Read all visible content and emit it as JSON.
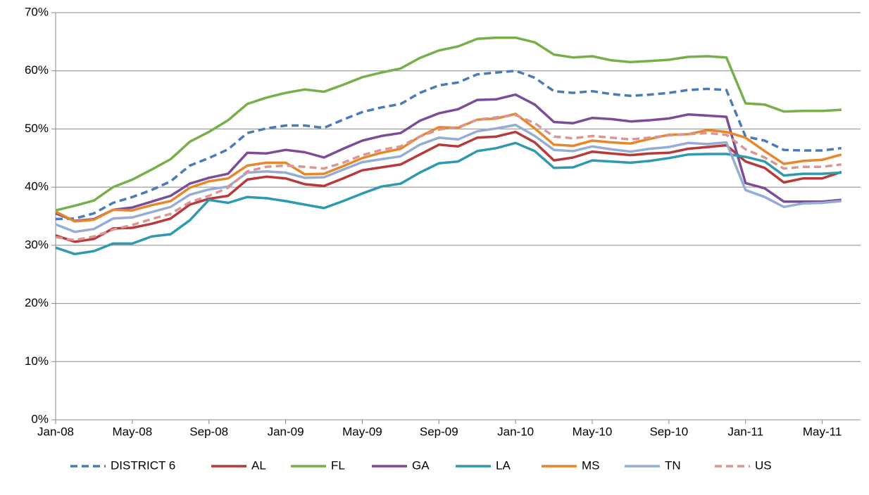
{
  "chart_data": {
    "type": "line",
    "categories": [
      "Jan-08",
      null,
      null,
      null,
      "May-08",
      null,
      null,
      null,
      "Sep-08",
      null,
      null,
      null,
      "Jan-09",
      null,
      null,
      null,
      "May-09",
      null,
      null,
      null,
      "Sep-09",
      null,
      null,
      null,
      "Jan-10",
      null,
      null,
      null,
      "May-10",
      null,
      null,
      null,
      "Sep-10",
      null,
      null,
      null,
      "Jan-11",
      null,
      null,
      null,
      "May-11",
      null
    ],
    "ylim": [
      0,
      70
    ],
    "yticks": [
      {
        "value": 0,
        "label": "0%"
      },
      {
        "value": 10,
        "label": "10%"
      },
      {
        "value": 20,
        "label": "20%"
      },
      {
        "value": 30,
        "label": "30%"
      },
      {
        "value": 40,
        "label": "40%"
      },
      {
        "value": 50,
        "label": "50%"
      },
      {
        "value": 60,
        "label": "60%"
      },
      {
        "value": 70,
        "label": "70%"
      }
    ],
    "grid": true,
    "legend": "bottom",
    "series": [
      {
        "name": "DISTRICT 6",
        "color": "#4a7ab8",
        "dashed": true,
        "values": [
          34.5,
          34.6,
          35.5,
          37.3,
          38.3,
          39.5,
          41,
          43.7,
          45,
          46.5,
          49.3,
          50.1,
          50.6,
          50.6,
          50.2,
          51.6,
          52.9,
          53.7,
          54.3,
          56.2,
          57.5,
          58,
          59.4,
          59.7,
          60,
          58.8,
          56.5,
          56.2,
          56.5,
          56,
          55.7,
          55.9,
          56.2,
          56.7,
          56.9,
          56.7,
          48.7,
          48,
          46.4,
          46.3,
          46.3,
          46.7
        ]
      },
      {
        "name": "AL",
        "color": "#b7393a",
        "dashed": false,
        "values": [
          31.7,
          30.6,
          31.1,
          32.9,
          33,
          33.7,
          34.6,
          37,
          38,
          38.5,
          41.3,
          41.8,
          41.5,
          40.5,
          40.2,
          41.5,
          42.9,
          43.4,
          43.9,
          45.6,
          47.3,
          47,
          48.5,
          48.7,
          49.5,
          47.7,
          44.6,
          45.1,
          46.1,
          45.8,
          45.5,
          45.8,
          45.9,
          46.6,
          46.9,
          47.2,
          44.4,
          43.3,
          40.8,
          41.5,
          41.5,
          42.6
        ]
      },
      {
        "name": "FL",
        "color": "#77b04a",
        "dashed": false,
        "values": [
          36,
          36.8,
          37.7,
          40,
          41.3,
          43,
          44.8,
          47.8,
          49.5,
          51.5,
          54.3,
          55.4,
          56.2,
          56.8,
          56.4,
          57.6,
          58.9,
          59.7,
          60.4,
          62.2,
          63.5,
          64.2,
          65.5,
          65.7,
          65.7,
          64.9,
          62.8,
          62.3,
          62.5,
          61.8,
          61.5,
          61.7,
          61.9,
          62.4,
          62.5,
          62.3,
          54.4,
          54.2,
          53,
          53.1,
          53.1,
          53.3
        ]
      },
      {
        "name": "GA",
        "color": "#7a4d96",
        "dashed": false,
        "values": [
          35.5,
          34.2,
          34.5,
          36.1,
          36.5,
          37.5,
          38.5,
          40.6,
          41.6,
          42.3,
          45.9,
          45.8,
          46.4,
          46,
          45.1,
          46.6,
          48,
          48.8,
          49.3,
          51.4,
          52.7,
          53.4,
          55,
          55.1,
          55.9,
          54.2,
          51.2,
          51,
          51.9,
          51.7,
          51.3,
          51.5,
          51.8,
          52.5,
          52.3,
          52.1,
          40.7,
          39.8,
          37.5,
          37.5,
          37.5,
          37.8
        ]
      },
      {
        "name": "LA",
        "color": "#2e9aaf",
        "dashed": false,
        "values": [
          29.6,
          28.5,
          29,
          30.3,
          30.3,
          31.5,
          31.9,
          34.3,
          37.8,
          37.3,
          38.3,
          38.1,
          37.6,
          37,
          36.4,
          37.6,
          38.9,
          40.1,
          40.6,
          42.5,
          44.1,
          44.4,
          46.2,
          46.7,
          47.6,
          46.2,
          43.3,
          43.4,
          44.6,
          44.4,
          44.2,
          44.5,
          45,
          45.6,
          45.7,
          45.7,
          45.2,
          44.4,
          42,
          42.3,
          42.3,
          42.5
        ]
      },
      {
        "name": "MS",
        "color": "#e8862a",
        "dashed": false,
        "values": [
          35.8,
          34.1,
          34.4,
          36.1,
          36,
          36.9,
          37.6,
          39.9,
          41,
          41.5,
          43.7,
          44.2,
          44.2,
          42.2,
          42.3,
          43.6,
          45,
          45.9,
          46.6,
          48.7,
          50.3,
          50.2,
          51.6,
          51.8,
          52.6,
          50.1,
          47.3,
          47.1,
          48,
          47.7,
          47.5,
          48.3,
          49,
          49.1,
          49.8,
          49.5,
          48.5,
          46.2,
          44,
          44.5,
          44.7,
          45.6
        ]
      },
      {
        "name": "TN",
        "color": "#95add6",
        "dashed": false,
        "values": [
          33.6,
          32.3,
          32.8,
          34.6,
          34.8,
          35.7,
          36.6,
          38.7,
          39.6,
          40.1,
          42.5,
          42.7,
          42.5,
          41.6,
          41.7,
          43,
          44.3,
          44.8,
          45.3,
          47.3,
          48.5,
          48.2,
          49.6,
          50.1,
          50.7,
          48.8,
          46.4,
          46.2,
          47,
          46.5,
          46.1,
          46.6,
          46.9,
          47.6,
          47.4,
          47.7,
          39.5,
          38.3,
          36.6,
          37.2,
          37.3,
          37.6
        ]
      },
      {
        "name": "US",
        "color": "#d99694",
        "dashed": true,
        "values": [
          31.4,
          30.9,
          31.5,
          32.7,
          33.5,
          34.5,
          35.4,
          37.4,
          38.5,
          39.9,
          42.7,
          43.5,
          43.7,
          43.5,
          43.2,
          44.2,
          45.5,
          46.4,
          47,
          48.7,
          49.9,
          50.3,
          51.6,
          52,
          52.4,
          51,
          48.7,
          48.4,
          48.8,
          48.5,
          48.2,
          48.5,
          48.9,
          49.1,
          49.3,
          49,
          46.5,
          45.1,
          43.2,
          43.5,
          43.5,
          43.9
        ]
      }
    ]
  }
}
